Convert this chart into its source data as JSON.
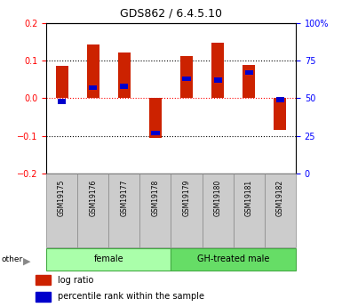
{
  "title": "GDS862 / 6.4.5.10",
  "samples": [
    "GSM19175",
    "GSM19176",
    "GSM19177",
    "GSM19178",
    "GSM19179",
    "GSM19180",
    "GSM19181",
    "GSM19182"
  ],
  "log_ratio": [
    0.085,
    0.143,
    0.122,
    -0.105,
    0.112,
    0.147,
    0.088,
    -0.085
  ],
  "percentile": [
    48,
    57,
    58,
    27,
    63,
    62,
    67,
    49
  ],
  "groups": [
    {
      "label": "female",
      "start": 0,
      "end": 4,
      "color": "#aaffaa"
    },
    {
      "label": "GH-treated male",
      "start": 4,
      "end": 8,
      "color": "#66dd66"
    }
  ],
  "bar_color_red": "#cc2200",
  "bar_color_blue": "#0000cc",
  "ylim_left": [
    -0.2,
    0.2
  ],
  "ylim_right": [
    0,
    100
  ],
  "yticks_left": [
    -0.2,
    -0.1,
    0.0,
    0.1,
    0.2
  ],
  "yticks_right": [
    0,
    25,
    50,
    75,
    100
  ],
  "bar_width": 0.4,
  "fig_width": 3.85,
  "fig_height": 3.45,
  "fig_dpi": 100
}
